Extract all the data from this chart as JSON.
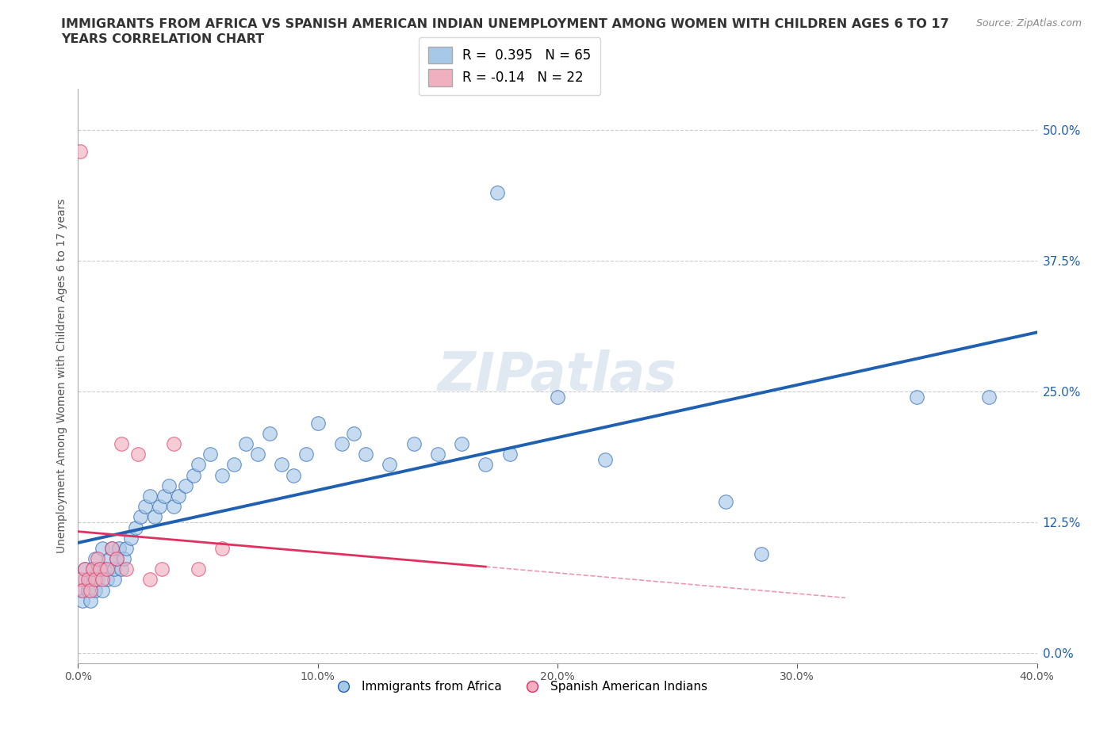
{
  "title_line1": "IMMIGRANTS FROM AFRICA VS SPANISH AMERICAN INDIAN UNEMPLOYMENT AMONG WOMEN WITH CHILDREN AGES 6 TO 17",
  "title_line2": "YEARS CORRELATION CHART",
  "source": "Source: ZipAtlas.com",
  "ylabel": "Unemployment Among Women with Children Ages 6 to 17 years",
  "xlim": [
    0.0,
    0.4
  ],
  "ylim": [
    -0.01,
    0.54
  ],
  "yticks": [
    0.0,
    0.125,
    0.25,
    0.375,
    0.5
  ],
  "xticks": [
    0.0,
    0.1,
    0.2,
    0.3,
    0.4
  ],
  "r_africa": 0.395,
  "n_africa": 65,
  "r_indian": -0.14,
  "n_indian": 22,
  "watermark": "ZIPatlas",
  "blue_color": "#a8c8e8",
  "pink_color": "#f0b0c0",
  "blue_line_color": "#2060b0",
  "pink_line_color": "#e03060",
  "legend_label_africa": "Immigrants from Africa",
  "legend_label_indian": "Spanish American Indians",
  "africa_x": [
    0.001,
    0.002,
    0.003,
    0.003,
    0.004,
    0.005,
    0.005,
    0.006,
    0.007,
    0.007,
    0.008,
    0.009,
    0.01,
    0.01,
    0.011,
    0.012,
    0.013,
    0.014,
    0.015,
    0.015,
    0.016,
    0.017,
    0.018,
    0.019,
    0.02,
    0.022,
    0.024,
    0.026,
    0.028,
    0.03,
    0.032,
    0.034,
    0.036,
    0.038,
    0.04,
    0.042,
    0.045,
    0.048,
    0.05,
    0.055,
    0.06,
    0.065,
    0.07,
    0.075,
    0.08,
    0.085,
    0.09,
    0.095,
    0.1,
    0.11,
    0.115,
    0.12,
    0.13,
    0.14,
    0.15,
    0.16,
    0.17,
    0.18,
    0.2,
    0.22,
    0.27,
    0.285,
    0.35,
    0.38,
    0.175
  ],
  "africa_y": [
    0.06,
    0.05,
    0.07,
    0.08,
    0.06,
    0.05,
    0.07,
    0.08,
    0.06,
    0.09,
    0.07,
    0.08,
    0.06,
    0.1,
    0.08,
    0.07,
    0.09,
    0.1,
    0.07,
    0.08,
    0.09,
    0.1,
    0.08,
    0.09,
    0.1,
    0.11,
    0.12,
    0.13,
    0.14,
    0.15,
    0.13,
    0.14,
    0.15,
    0.16,
    0.14,
    0.15,
    0.16,
    0.17,
    0.18,
    0.19,
    0.17,
    0.18,
    0.2,
    0.19,
    0.21,
    0.18,
    0.17,
    0.19,
    0.22,
    0.2,
    0.21,
    0.19,
    0.18,
    0.2,
    0.19,
    0.2,
    0.18,
    0.19,
    0.245,
    0.185,
    0.145,
    0.095,
    0.245,
    0.245,
    0.44
  ],
  "indian_x": [
    0.001,
    0.002,
    0.003,
    0.004,
    0.005,
    0.006,
    0.007,
    0.008,
    0.009,
    0.01,
    0.012,
    0.014,
    0.016,
    0.018,
    0.02,
    0.025,
    0.03,
    0.035,
    0.04,
    0.05,
    0.001,
    0.06
  ],
  "indian_y": [
    0.07,
    0.06,
    0.08,
    0.07,
    0.06,
    0.08,
    0.07,
    0.09,
    0.08,
    0.07,
    0.08,
    0.1,
    0.09,
    0.2,
    0.08,
    0.19,
    0.07,
    0.08,
    0.2,
    0.08,
    0.48,
    0.1
  ]
}
